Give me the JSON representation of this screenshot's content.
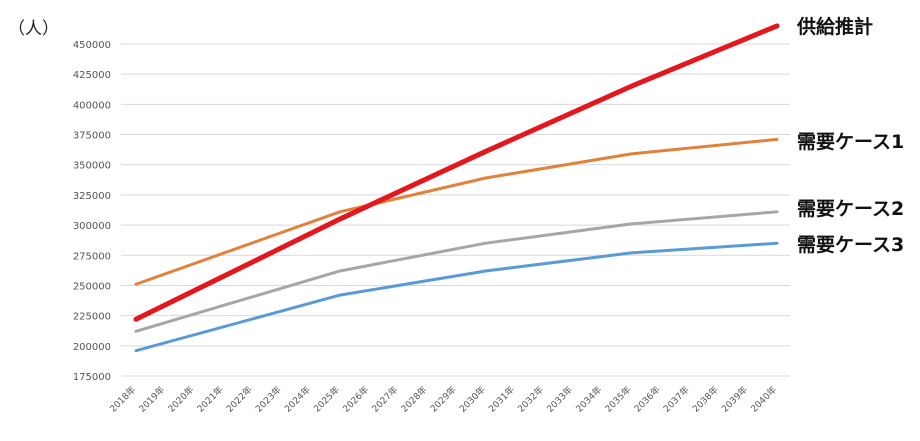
{
  "chart_data": {
    "type": "line",
    "unit_label": "（人）",
    "ylim": [
      175000,
      450000
    ],
    "y_ticks": [
      175000,
      200000,
      225000,
      250000,
      275000,
      300000,
      325000,
      350000,
      375000,
      400000,
      425000,
      450000
    ],
    "y_tick_labels": [
      "175000",
      "200000",
      "225000",
      "250000",
      "275000",
      "300000",
      "325000",
      "350000",
      "375000",
      "400000",
      "425000",
      "450000"
    ],
    "categories": [
      "2018年",
      "2019年",
      "2020年",
      "2021年",
      "2022年",
      "2023年",
      "2024年",
      "2025年",
      "2026年",
      "2027年",
      "2028年",
      "2029年",
      "2030年",
      "2031年",
      "2032年",
      "2033年",
      "2034年",
      "2035年",
      "2036年",
      "2037年",
      "2038年",
      "2039年",
      "2040年"
    ],
    "grid": true,
    "legend": "right-inline",
    "series": [
      {
        "name": "需要ケース1",
        "color": "#E2823A",
        "width": 3,
        "points": [
          [
            0,
            251000
          ],
          [
            7,
            311000
          ],
          [
            12,
            339000
          ],
          [
            17,
            359000
          ],
          [
            22,
            371000
          ]
        ]
      },
      {
        "name": "需要ケース2",
        "color": "#A6A6A6",
        "width": 3,
        "points": [
          [
            0,
            212000
          ],
          [
            7,
            262000
          ],
          [
            12,
            285000
          ],
          [
            17,
            301000
          ],
          [
            22,
            311000
          ]
        ]
      },
      {
        "name": "需要ケース3",
        "color": "#5B9BD5",
        "width": 3,
        "points": [
          [
            0,
            196000
          ],
          [
            7,
            242000
          ],
          [
            12,
            262000
          ],
          [
            17,
            277000
          ],
          [
            22,
            285000
          ]
        ]
      },
      {
        "name": "供給推計",
        "color": "#E3171D",
        "width": 5,
        "points": [
          [
            0,
            222000
          ],
          [
            7,
            305000
          ],
          [
            12,
            361000
          ],
          [
            17,
            415000
          ],
          [
            22,
            465000
          ]
        ]
      }
    ]
  }
}
